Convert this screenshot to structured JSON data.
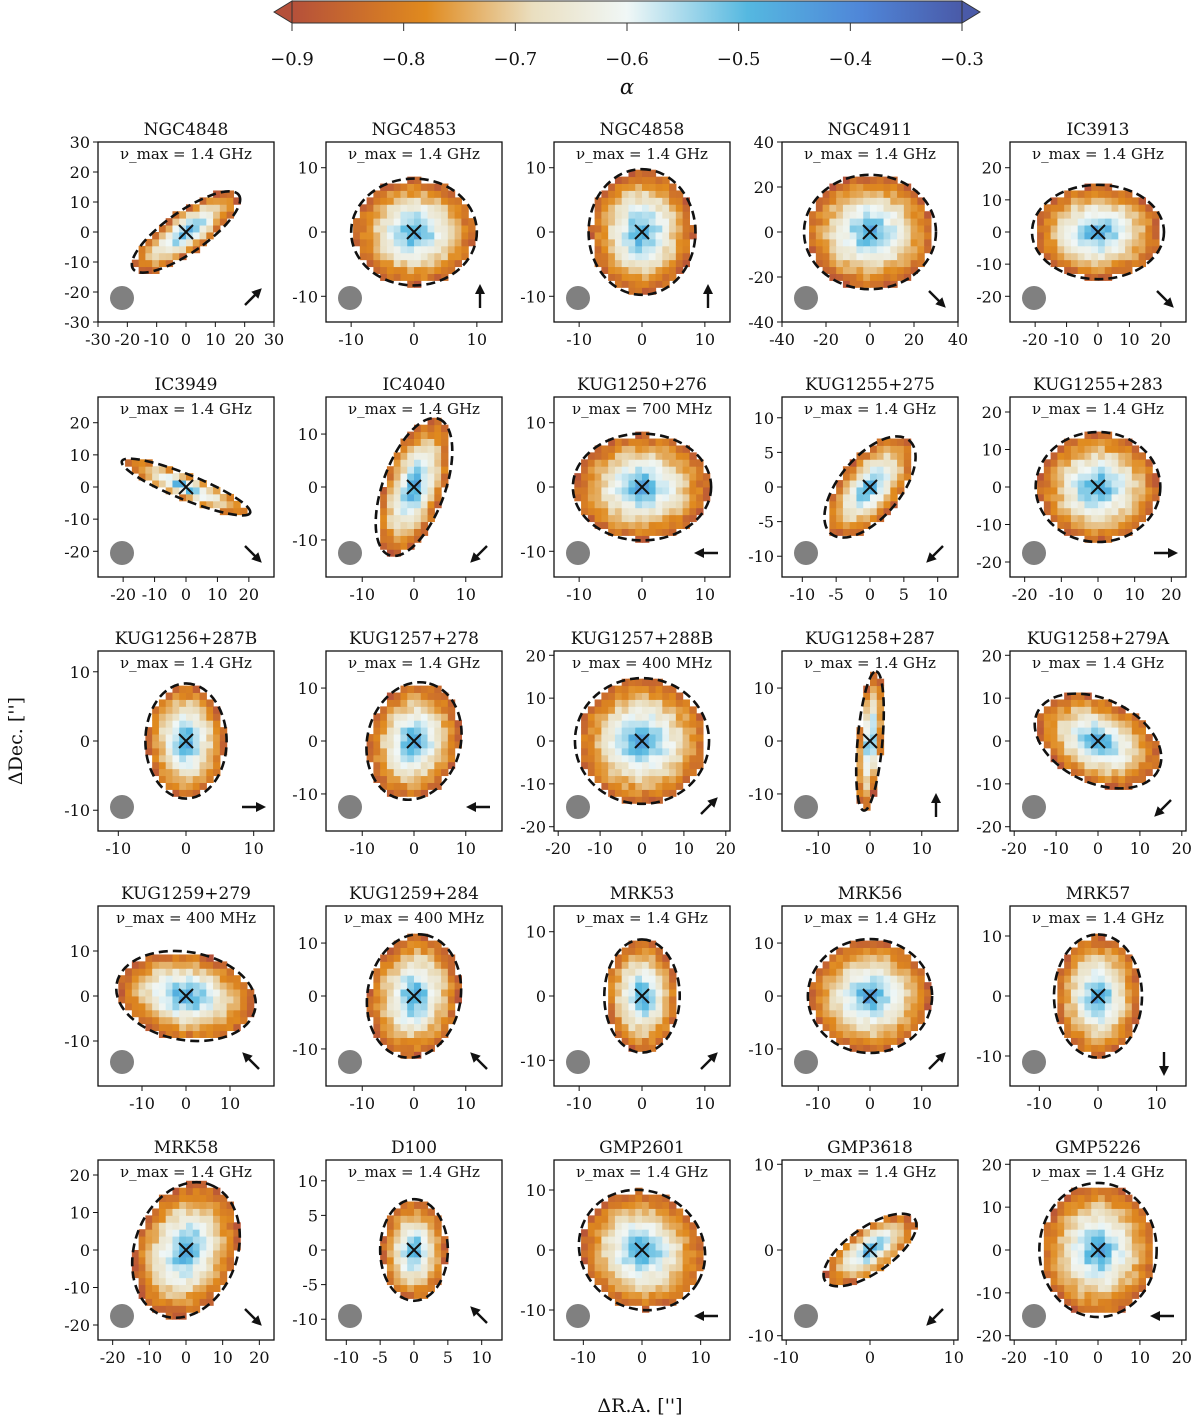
{
  "colorbar": {
    "label": "α",
    "ticks": [
      "−0.9",
      "−0.8",
      "−0.7",
      "−0.6",
      "−0.5",
      "−0.4",
      "−0.3"
    ],
    "range": [
      -0.9,
      -0.3
    ],
    "colors": [
      "#b5503a",
      "#e08a1e",
      "#f0f0f0",
      "#55b8e0",
      "#4a5aa8"
    ]
  },
  "axes": {
    "ylabel": "ΔDec. ['']",
    "xlabel": "ΔR.A. ['']"
  },
  "chart_data": [
    {
      "type": "heatmap",
      "name": "NGC4848",
      "freq": "ν_max = 1.4 GHz",
      "xlim": [
        -30,
        30
      ],
      "ylim": [
        -30,
        30
      ],
      "xticks": [
        "-30",
        "-20",
        "-10",
        "0",
        "10",
        "20",
        "30"
      ],
      "yticks": [
        "30",
        "20",
        "10",
        "0",
        "-10",
        "-20",
        "-30"
      ],
      "ellipse": {
        "a": 22,
        "b": 7,
        "pa": 35
      },
      "arrow": "NE"
    },
    {
      "type": "heatmap",
      "name": "NGC4853",
      "freq": "ν_max = 1.4 GHz",
      "xlim": [
        -14,
        14
      ],
      "ylim": [
        -14,
        14
      ],
      "xticks": [
        "-10",
        "0",
        "10"
      ],
      "yticks": [
        "10",
        "0",
        "-10"
      ],
      "ellipse": {
        "a": 10,
        "b": 8.5,
        "pa": 0
      },
      "arrow": "N"
    },
    {
      "type": "heatmap",
      "name": "NGC4858",
      "freq": "ν_max = 1.4 GHz",
      "xlim": [
        -14,
        14
      ],
      "ylim": [
        -14,
        14
      ],
      "xticks": [
        "-10",
        "0",
        "10"
      ],
      "yticks": [
        "10",
        "0",
        "-10"
      ],
      "ellipse": {
        "a": 10,
        "b": 8.5,
        "pa": 90
      },
      "arrow": "N"
    },
    {
      "type": "heatmap",
      "name": "NGC4911",
      "freq": "ν_max = 1.4 GHz",
      "xlim": [
        -40,
        40
      ],
      "ylim": [
        -40,
        40
      ],
      "xticks": [
        "-40",
        "-20",
        "0",
        "20",
        "40"
      ],
      "yticks": [
        "40",
        "20",
        "0",
        "-20",
        "-40"
      ],
      "ellipse": {
        "a": 30,
        "b": 26,
        "pa": 0
      },
      "arrow": "SE"
    },
    {
      "type": "heatmap",
      "name": "IC3913",
      "freq": "ν_max = 1.4 GHz",
      "xlim": [
        -28,
        28
      ],
      "ylim": [
        -28,
        28
      ],
      "xticks": [
        "-20",
        "-10",
        "0",
        "10",
        "20"
      ],
      "yticks": [
        "20",
        "10",
        "0",
        "-10",
        "-20"
      ],
      "ellipse": {
        "a": 21,
        "b": 15,
        "pa": 0
      },
      "arrow": "SE"
    },
    {
      "type": "heatmap",
      "name": "IC3949",
      "freq": "ν_max = 1.4 GHz",
      "xlim": [
        -28,
        28
      ],
      "ylim": [
        -28,
        28
      ],
      "xticks": [
        "-20",
        "-10",
        "0",
        "10",
        "20"
      ],
      "yticks": [
        "20",
        "10",
        "0",
        "-10",
        "-20"
      ],
      "ellipse": {
        "a": 22,
        "b": 4,
        "pa": -22
      },
      "arrow": "SE"
    },
    {
      "type": "heatmap",
      "name": "IC4040",
      "freq": "ν_max = 1.4 GHz",
      "xlim": [
        -17,
        17
      ],
      "ylim": [
        -17,
        17
      ],
      "xticks": [
        "-10",
        "0",
        "10"
      ],
      "yticks": [
        "10",
        "0",
        "-10"
      ],
      "ellipse": {
        "a": 14,
        "b": 6,
        "pa": 70
      },
      "arrow": "SW"
    },
    {
      "type": "heatmap",
      "name": "KUG1250+276",
      "freq": "ν_max = 700 MHz",
      "xlim": [
        -14,
        14
      ],
      "ylim": [
        -14,
        14
      ],
      "xticks": [
        "-10",
        "0",
        "10"
      ],
      "yticks": [
        "10",
        "0",
        "-10"
      ],
      "ellipse": {
        "a": 11,
        "b": 8.5,
        "pa": 0
      },
      "arrow": "W"
    },
    {
      "type": "heatmap",
      "name": "KUG1255+275",
      "freq": "ν_max = 1.4 GHz",
      "xlim": [
        -13,
        13
      ],
      "ylim": [
        -13,
        13
      ],
      "xticks": [
        "-10",
        "-5",
        "0",
        "5",
        "10"
      ],
      "yticks": [
        "10",
        "5",
        "0",
        "-5",
        "-10"
      ],
      "ellipse": {
        "a": 9,
        "b": 4.5,
        "pa": 50
      },
      "arrow": "SW"
    },
    {
      "type": "heatmap",
      "name": "KUG1255+283",
      "freq": "ν_max = 1.4 GHz",
      "xlim": [
        -24,
        24
      ],
      "ylim": [
        -24,
        24
      ],
      "xticks": [
        "-20",
        "-10",
        "0",
        "10",
        "20"
      ],
      "yticks": [
        "20",
        "10",
        "0",
        "-10",
        "-20"
      ],
      "ellipse": {
        "a": 17,
        "b": 15,
        "pa": 0
      },
      "arrow": "E"
    },
    {
      "type": "heatmap",
      "name": "KUG1256+287B",
      "freq": "ν_max = 1.4 GHz",
      "xlim": [
        -13,
        13
      ],
      "ylim": [
        -13,
        13
      ],
      "xticks": [
        "-10",
        "0",
        "10"
      ],
      "yticks": [
        "10",
        "0",
        "-10"
      ],
      "ellipse": {
        "a": 8.5,
        "b": 6,
        "pa": 90
      },
      "arrow": "E"
    },
    {
      "type": "heatmap",
      "name": "KUG1257+278",
      "freq": "ν_max = 1.4 GHz",
      "xlim": [
        -17,
        17
      ],
      "ylim": [
        -17,
        17
      ],
      "xticks": [
        "-10",
        "0",
        "10"
      ],
      "yticks": [
        "10",
        "0",
        "-10"
      ],
      "ellipse": {
        "a": 11.5,
        "b": 9,
        "pa": 75
      },
      "arrow": "W"
    },
    {
      "type": "heatmap",
      "name": "KUG1257+288B",
      "freq": "ν_max = 400 MHz",
      "xlim": [
        -21,
        21
      ],
      "ylim": [
        -21,
        21
      ],
      "xticks": [
        "-20",
        "-10",
        "0",
        "10",
        "20"
      ],
      "yticks": [
        "20",
        "10",
        "0",
        "-10",
        "-20"
      ],
      "ellipse": {
        "a": 16,
        "b": 15,
        "pa": 0
      },
      "arrow": "NE"
    },
    {
      "type": "heatmap",
      "name": "KUG1258+287",
      "freq": "ν_max = 1.4 GHz",
      "xlim": [
        -17,
        17
      ],
      "ylim": [
        -17,
        17
      ],
      "xticks": [
        "-10",
        "0",
        "10"
      ],
      "yticks": [
        "10",
        "0",
        "-10"
      ],
      "ellipse": {
        "a": 13.5,
        "b": 2.4,
        "pa": 85
      },
      "arrow": "N"
    },
    {
      "type": "heatmap",
      "name": "KUG1258+279A",
      "freq": "ν_max = 1.4 GHz",
      "xlim": [
        -21,
        21
      ],
      "ylim": [
        -21,
        21
      ],
      "xticks": [
        "-20",
        "-10",
        "0",
        "10",
        "20"
      ],
      "yticks": [
        "20",
        "10",
        "0",
        "-10",
        "-20"
      ],
      "ellipse": {
        "a": 16,
        "b": 10,
        "pa": -25
      },
      "arrow": "SW"
    },
    {
      "type": "heatmap",
      "name": "KUG1259+279",
      "freq": "ν_max = 400 MHz",
      "xlim": [
        -20,
        20
      ],
      "ylim": [
        -20,
        20
      ],
      "xticks": [
        "-10",
        "0",
        "10"
      ],
      "yticks": [
        "10",
        "0",
        "-10"
      ],
      "ellipse": {
        "a": 16,
        "b": 10,
        "pa": -10
      },
      "arrow": "NW"
    },
    {
      "type": "heatmap",
      "name": "KUG1259+284",
      "freq": "ν_max = 400 MHz",
      "xlim": [
        -17,
        17
      ],
      "ylim": [
        -17,
        17
      ],
      "xticks": [
        "-10",
        "0",
        "10"
      ],
      "yticks": [
        "10",
        "0",
        "-10"
      ],
      "ellipse": {
        "a": 12,
        "b": 9,
        "pa": 80
      },
      "arrow": "NW"
    },
    {
      "type": "heatmap",
      "name": "MRK53",
      "freq": "ν_max = 1.4 GHz",
      "xlim": [
        -14,
        14
      ],
      "ylim": [
        -14,
        14
      ],
      "xticks": [
        "-10",
        "0",
        "10"
      ],
      "yticks": [
        "10",
        "0",
        "-10"
      ],
      "ellipse": {
        "a": 9,
        "b": 6,
        "pa": 90
      },
      "arrow": "NE"
    },
    {
      "type": "heatmap",
      "name": "MRK56",
      "freq": "ν_max = 1.4 GHz",
      "xlim": [
        -17,
        17
      ],
      "ylim": [
        -17,
        17
      ],
      "xticks": [
        "-10",
        "0",
        "10"
      ],
      "yticks": [
        "10",
        "0",
        "-10"
      ],
      "ellipse": {
        "a": 12,
        "b": 11,
        "pa": 0
      },
      "arrow": "NE"
    },
    {
      "type": "heatmap",
      "name": "MRK57",
      "freq": "ν_max = 1.4 GHz",
      "xlim": [
        -15,
        15
      ],
      "ylim": [
        -15,
        15
      ],
      "xticks": [
        "-10",
        "0",
        "10"
      ],
      "yticks": [
        "10",
        "0",
        "-10"
      ],
      "ellipse": {
        "a": 10.5,
        "b": 7.5,
        "pa": 90
      },
      "arrow": "S"
    },
    {
      "type": "heatmap",
      "name": "MRK58",
      "freq": "ν_max = 1.4 GHz",
      "xlim": [
        -24,
        24
      ],
      "ylim": [
        -24,
        24
      ],
      "xticks": [
        "-20",
        "-10",
        "0",
        "10",
        "20"
      ],
      "yticks": [
        "20",
        "10",
        "0",
        "-10",
        "-20"
      ],
      "ellipse": {
        "a": 19,
        "b": 14,
        "pa": 70
      },
      "arrow": "SE"
    },
    {
      "type": "heatmap",
      "name": "D100",
      "freq": "ν_max = 1.4 GHz",
      "xlim": [
        -13,
        13
      ],
      "ylim": [
        -13,
        13
      ],
      "xticks": [
        "-10",
        "-5",
        "0",
        "5",
        "10"
      ],
      "yticks": [
        "10",
        "5",
        "0",
        "-5",
        "-10"
      ],
      "ellipse": {
        "a": 7.5,
        "b": 5,
        "pa": 90
      },
      "arrow": "NW"
    },
    {
      "type": "heatmap",
      "name": "GMP2601",
      "freq": "ν_max = 1.4 GHz",
      "xlim": [
        -15,
        15
      ],
      "ylim": [
        -15,
        15
      ],
      "xticks": [
        "-10",
        "0",
        "10"
      ],
      "yticks": [
        "10",
        "0",
        "-10"
      ],
      "ellipse": {
        "a": 11,
        "b": 10,
        "pa": -30
      },
      "arrow": "W"
    },
    {
      "type": "heatmap",
      "name": "GMP3618",
      "freq": "ν_max = 1.4 GHz",
      "xlim": [
        -10.5,
        10.5
      ],
      "ylim": [
        -10.5,
        10.5
      ],
      "xticks": [
        "-10",
        "0",
        "10"
      ],
      "yticks": [
        "10",
        "0",
        "-10"
      ],
      "ellipse": {
        "a": 6.5,
        "b": 2.7,
        "pa": 35
      },
      "arrow": "SW"
    },
    {
      "type": "heatmap",
      "name": "GMP5226",
      "freq": "ν_max = 1.4 GHz",
      "xlim": [
        -21,
        21
      ],
      "ylim": [
        -21,
        21
      ],
      "xticks": [
        "-20",
        "-10",
        "0",
        "10",
        "20"
      ],
      "yticks": [
        "20",
        "10",
        "0",
        "-10",
        "-20"
      ],
      "ellipse": {
        "a": 14,
        "b": 16,
        "pa": 0
      },
      "arrow": "W"
    }
  ]
}
